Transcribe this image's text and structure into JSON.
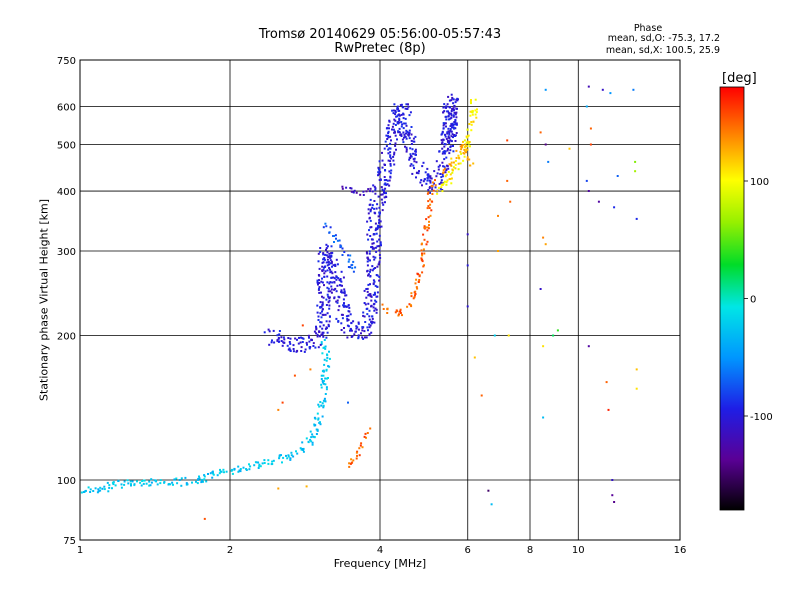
{
  "chart_data": {
    "type": "scatter",
    "title": "Tromsø 20140629 05:56:00-05:57:43",
    "subtitle": "RwPretec (8p)",
    "xlabel": "Frequency [MHz]",
    "ylabel": "Stationary phase Virtual Height [km]",
    "x_scale": "log",
    "y_scale": "log",
    "xlim": [
      1,
      16
    ],
    "ylim": [
      75,
      750
    ],
    "x_ticks": [
      1,
      2,
      4,
      6,
      8,
      10,
      16
    ],
    "y_ticks": [
      75,
      100,
      200,
      300,
      400,
      500,
      600,
      750
    ],
    "grid": true,
    "phase_info": {
      "title": "Phase",
      "line1": "mean, sd,O: -75.3, 17.2",
      "line2": "mean, sd,X: 100.5, 25.9"
    },
    "colorbar": {
      "label": "[deg]",
      "range": [
        -180,
        180
      ],
      "ticks": [
        100,
        0,
        -100
      ],
      "colormap": "rainbow"
    },
    "traces": [
      {
        "points": [
          [
            1.0,
            96
          ],
          [
            1.05,
            95
          ],
          [
            1.1,
            96
          ],
          [
            1.2,
            98
          ],
          [
            1.3,
            99
          ],
          [
            1.45,
            99
          ],
          [
            1.6,
            99
          ],
          [
            1.75,
            100
          ],
          [
            1.9,
            103
          ],
          [
            2.05,
            105
          ],
          [
            2.2,
            107
          ],
          [
            2.4,
            109
          ],
          [
            2.6,
            112
          ],
          [
            2.8,
            116
          ],
          [
            2.95,
            124
          ],
          [
            3.05,
            140
          ],
          [
            3.1,
            160
          ],
          [
            3.12,
            180
          ],
          [
            3.1,
            195
          ]
        ],
        "phase": -25,
        "spread": 1.6
      },
      {
        "points": [
          [
            2.4,
            200
          ],
          [
            2.55,
            194
          ],
          [
            2.7,
            191
          ],
          [
            2.85,
            191
          ],
          [
            2.97,
            194
          ],
          [
            3.05,
            200
          ],
          [
            3.08,
            215
          ],
          [
            3.1,
            240
          ],
          [
            3.1,
            275
          ],
          [
            3.12,
            300
          ],
          [
            3.18,
            280
          ],
          [
            3.3,
            250
          ],
          [
            3.4,
            218
          ],
          [
            3.55,
            201
          ],
          [
            3.7,
            203
          ],
          [
            3.8,
            218
          ],
          [
            3.85,
            250
          ],
          [
            3.88,
            300
          ],
          [
            3.9,
            350
          ],
          [
            3.95,
            380
          ],
          [
            4.05,
            420
          ],
          [
            4.2,
            500
          ],
          [
            4.3,
            560
          ],
          [
            4.4,
            600
          ],
          [
            4.55,
            520
          ],
          [
            4.75,
            450
          ],
          [
            4.95,
            420
          ],
          [
            5.15,
            410
          ],
          [
            5.35,
            440
          ],
          [
            5.5,
            520
          ],
          [
            5.55,
            620
          ],
          [
            5.5,
            500
          ]
        ],
        "phase": -100,
        "spread": 3.0
      },
      {
        "points": [
          [
            3.1,
            340
          ],
          [
            3.2,
            330
          ],
          [
            3.4,
            300
          ],
          [
            3.55,
            270
          ]
        ],
        "phase": -75,
        "spread": 1.2
      },
      {
        "points": [
          [
            3.3,
            410
          ],
          [
            3.5,
            400
          ],
          [
            3.7,
            395
          ],
          [
            3.9,
            405
          ]
        ],
        "phase": -115,
        "spread": 1.0
      },
      {
        "points": [
          [
            4.0,
            230
          ],
          [
            4.2,
            225
          ],
          [
            4.4,
            223
          ],
          [
            4.55,
            228
          ],
          [
            4.7,
            245
          ],
          [
            4.8,
            265
          ],
          [
            4.88,
            290
          ],
          [
            4.93,
            320
          ],
          [
            4.98,
            350
          ],
          [
            5.05,
            390
          ],
          [
            5.15,
            420
          ]
        ],
        "phase": 150,
        "spread": 1.2
      },
      {
        "points": [
          [
            3.4,
            105
          ],
          [
            3.55,
            110
          ],
          [
            3.7,
            120
          ],
          [
            3.8,
            127
          ]
        ],
        "phase": 150,
        "spread": 1.0
      },
      {
        "points": [
          [
            5.2,
            400
          ],
          [
            5.45,
            420
          ],
          [
            5.7,
            450
          ],
          [
            5.9,
            480
          ],
          [
            6.05,
            530
          ],
          [
            6.15,
            580
          ],
          [
            6.2,
            620
          ]
        ],
        "phase": 105,
        "spread": 1.6
      },
      {
        "points": [
          [
            5.3,
            430
          ],
          [
            5.6,
            460
          ],
          [
            5.9,
            500
          ],
          [
            6.1,
            450
          ]
        ],
        "phase": 125,
        "spread": 1.2
      }
    ],
    "scattered_points": [
      [
        1.78,
        83,
        155
      ],
      [
        2.5,
        140,
        140
      ],
      [
        2.55,
        145,
        160
      ],
      [
        2.5,
        96,
        130
      ],
      [
        2.85,
        97,
        125
      ],
      [
        2.7,
        165,
        155
      ],
      [
        2.9,
        170,
        140
      ],
      [
        2.8,
        210,
        160
      ],
      [
        3.45,
        145,
        -70
      ],
      [
        6.2,
        180,
        120
      ],
      [
        6.4,
        150,
        150
      ],
      [
        6.6,
        95,
        -150
      ],
      [
        6.7,
        89,
        -30
      ],
      [
        6.8,
        200,
        -20
      ],
      [
        6.9,
        300,
        130
      ],
      [
        6.9,
        355,
        140
      ],
      [
        7.2,
        510,
        160
      ],
      [
        7.2,
        420,
        150
      ],
      [
        7.3,
        380,
        150
      ],
      [
        7.25,
        200,
        110
      ],
      [
        6.0,
        325,
        -110
      ],
      [
        6.0,
        280,
        -100
      ],
      [
        6.0,
        230,
        -105
      ],
      [
        8.4,
        530,
        150
      ],
      [
        8.6,
        500,
        -140
      ],
      [
        8.6,
        650,
        -50
      ],
      [
        8.7,
        460,
        -60
      ],
      [
        8.5,
        320,
        140
      ],
      [
        8.4,
        250,
        -110
      ],
      [
        8.6,
        310,
        130
      ],
      [
        8.5,
        190,
        110
      ],
      [
        8.5,
        135,
        -30
      ],
      [
        9.6,
        490,
        120
      ],
      [
        10.5,
        660,
        -120
      ],
      [
        10.6,
        540,
        150
      ],
      [
        10.6,
        500,
        160
      ],
      [
        10.4,
        420,
        -80
      ],
      [
        10.5,
        400,
        -130
      ],
      [
        10.5,
        190,
        -130
      ],
      [
        11.0,
        380,
        -130
      ],
      [
        11.4,
        160,
        150
      ],
      [
        11.5,
        140,
        170
      ],
      [
        11.8,
        370,
        -90
      ],
      [
        11.2,
        650,
        -110
      ],
      [
        11.7,
        100,
        -110
      ],
      [
        11.7,
        93,
        -135
      ],
      [
        11.8,
        90,
        -140
      ],
      [
        12.9,
        650,
        -60
      ],
      [
        13.0,
        440,
        70
      ],
      [
        13.0,
        460,
        60
      ],
      [
        13.1,
        350,
        -90
      ],
      [
        13.1,
        170,
        120
      ],
      [
        13.1,
        155,
        110
      ],
      [
        11.6,
        640,
        -50
      ],
      [
        12.0,
        430,
        -70
      ],
      [
        10.4,
        600,
        -40
      ],
      [
        8.9,
        200,
        20
      ],
      [
        9.1,
        205,
        40
      ]
    ]
  }
}
